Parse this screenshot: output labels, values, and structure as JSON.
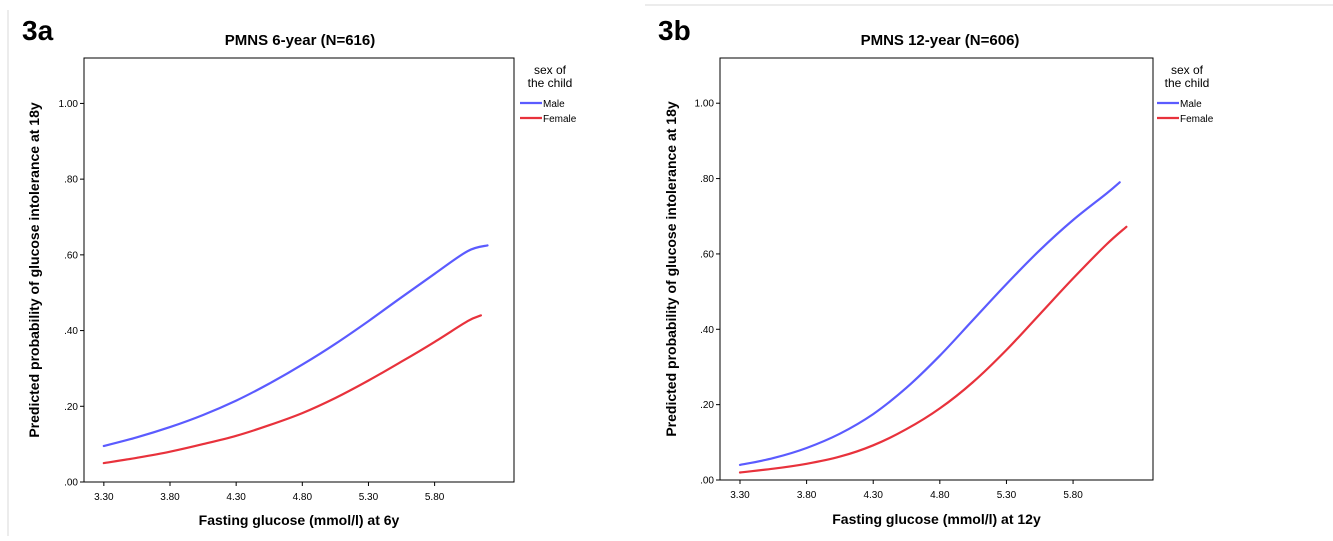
{
  "chart_data": [
    {
      "type": "line",
      "panel_label": "3a",
      "title": "PMNS 6-year (N=616)",
      "xlabel": "Fasting glucose (mmol/l) at 6y",
      "ylabel": "Predicted probability of glucose intolerance at 18y",
      "xlim": [
        3.15,
        6.4
      ],
      "ylim": [
        0,
        1.12
      ],
      "x_ticks": [
        3.3,
        3.8,
        4.3,
        4.8,
        5.3,
        5.8
      ],
      "x_tick_labels": [
        "3.30",
        "3.80",
        "4.30",
        "4.80",
        "5.30",
        "5.80"
      ],
      "y_ticks": [
        0,
        0.2,
        0.4,
        0.6,
        0.8,
        1.0
      ],
      "y_tick_labels": [
        ".00",
        ".20",
        ".40",
        ".60",
        ".80",
        "1.00"
      ],
      "legend": {
        "title_lines": [
          "sex of",
          "the child"
        ],
        "placement": "right"
      },
      "series": [
        {
          "name": "Male",
          "color": "#5b5bff",
          "x": [
            3.3,
            3.55,
            3.8,
            4.05,
            4.3,
            4.55,
            4.8,
            5.05,
            5.3,
            5.55,
            5.8,
            6.05,
            6.2
          ],
          "y": [
            0.095,
            0.118,
            0.145,
            0.177,
            0.215,
            0.26,
            0.31,
            0.365,
            0.425,
            0.488,
            0.55,
            0.61,
            0.625
          ]
        },
        {
          "name": "Female",
          "color": "#e8323c",
          "x": [
            3.3,
            3.55,
            3.8,
            4.05,
            4.3,
            4.55,
            4.8,
            5.05,
            5.3,
            5.55,
            5.8,
            6.05,
            6.15
          ],
          "y": [
            0.05,
            0.064,
            0.08,
            0.1,
            0.122,
            0.15,
            0.182,
            0.222,
            0.268,
            0.318,
            0.37,
            0.425,
            0.44
          ]
        }
      ]
    },
    {
      "type": "line",
      "panel_label": "3b",
      "title": "PMNS 12-year (N=606)",
      "xlabel": "Fasting glucose (mmol/l) at 12y",
      "ylabel": "Predicted probability of glucose intolerance at 18y",
      "xlim": [
        3.15,
        6.4
      ],
      "ylim": [
        0,
        1.12
      ],
      "x_ticks": [
        3.3,
        3.8,
        4.3,
        4.8,
        5.3,
        5.8
      ],
      "x_tick_labels": [
        "3.30",
        "3.80",
        "4.30",
        "4.80",
        "5.30",
        "5.80"
      ],
      "y_ticks": [
        0,
        0.2,
        0.4,
        0.6,
        0.8,
        1.0
      ],
      "y_tick_labels": [
        ".00",
        ".20",
        ".40",
        ".60",
        ".80",
        "1.00"
      ],
      "legend": {
        "title_lines": [
          "sex of",
          "the child"
        ],
        "placement": "right"
      },
      "series": [
        {
          "name": "Male",
          "color": "#5b5bff",
          "x": [
            3.3,
            3.55,
            3.8,
            4.05,
            4.3,
            4.55,
            4.8,
            5.05,
            5.3,
            5.55,
            5.8,
            6.05,
            6.15
          ],
          "y": [
            0.04,
            0.058,
            0.085,
            0.123,
            0.175,
            0.245,
            0.33,
            0.425,
            0.52,
            0.61,
            0.69,
            0.76,
            0.79
          ]
        },
        {
          "name": "Female",
          "color": "#e8323c",
          "x": [
            3.3,
            3.55,
            3.8,
            4.05,
            4.3,
            4.55,
            4.8,
            5.05,
            5.3,
            5.55,
            5.8,
            6.05,
            6.2
          ],
          "y": [
            0.02,
            0.03,
            0.043,
            0.062,
            0.092,
            0.135,
            0.19,
            0.26,
            0.345,
            0.44,
            0.535,
            0.625,
            0.672
          ]
        }
      ]
    }
  ]
}
